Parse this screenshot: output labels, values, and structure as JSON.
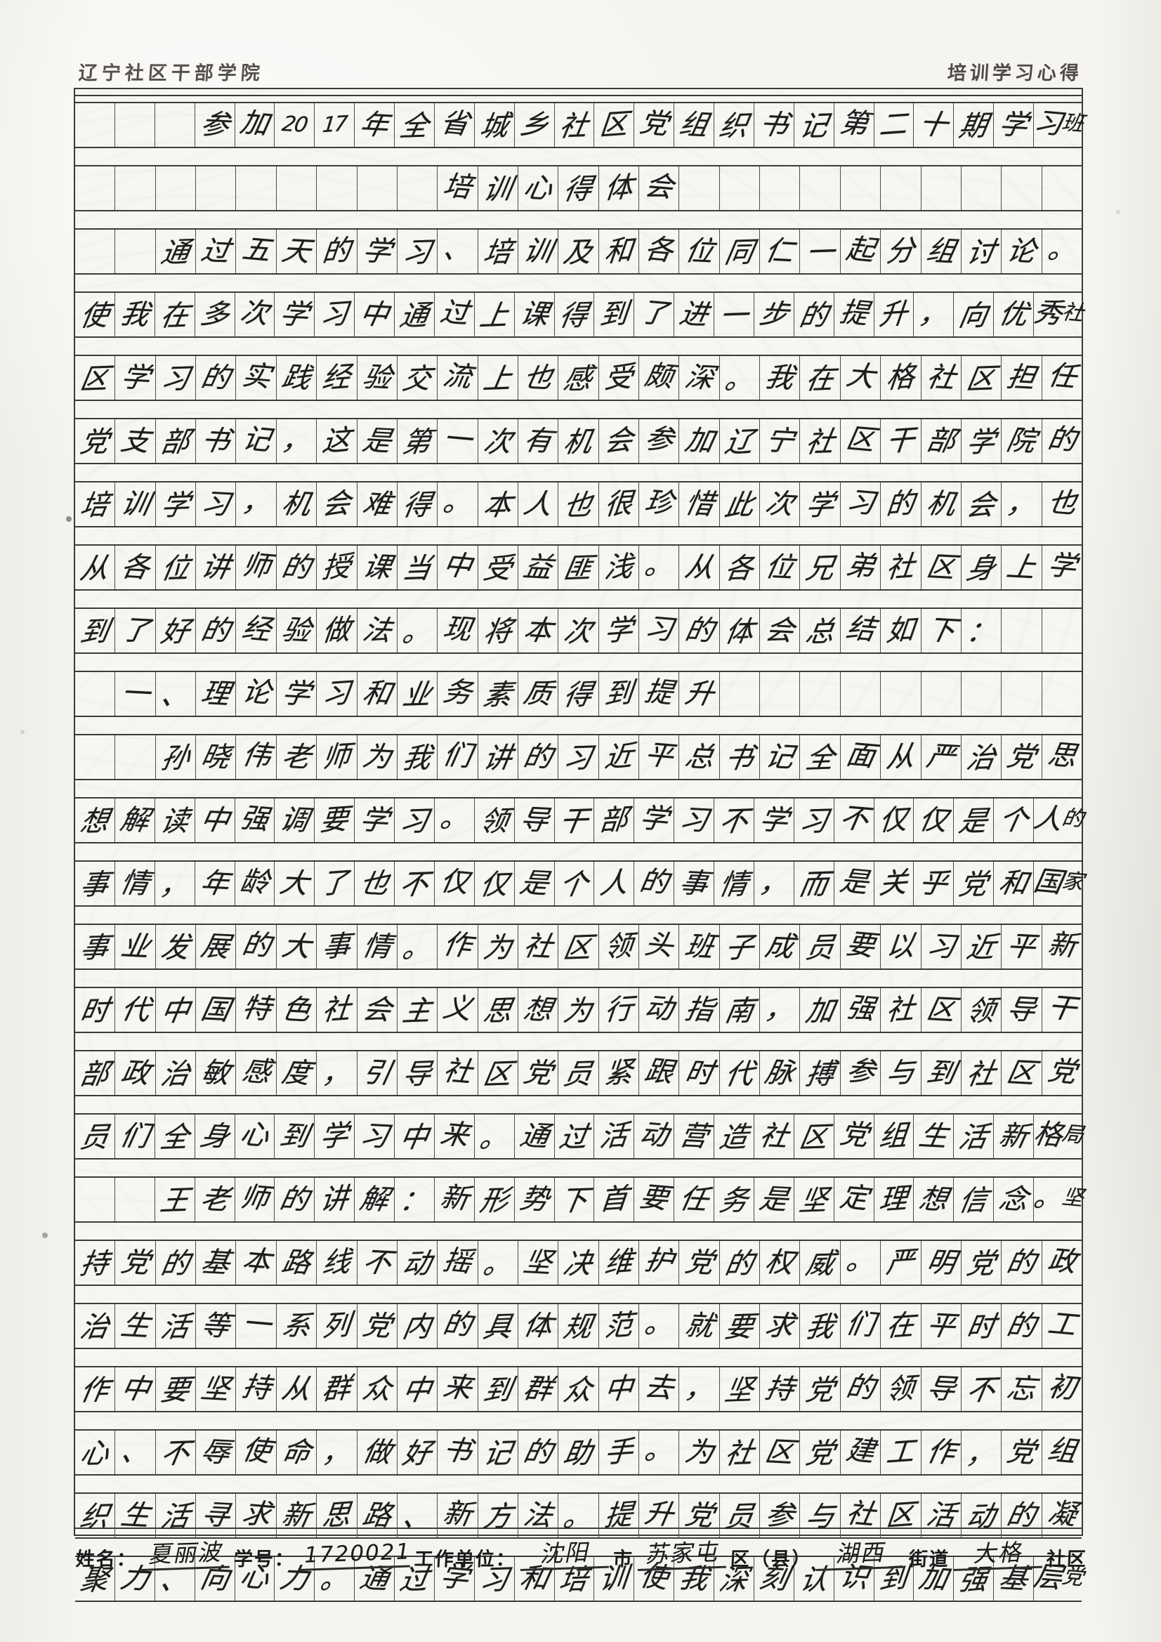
{
  "header": {
    "school": "辽宁社区干部学院",
    "doc_type": "培训学习心得"
  },
  "grid": {
    "cols": 25,
    "lines": [
      {
        "start": 3,
        "text": "参加2017年全省城乡社区党组织书记第二十期学习班"
      },
      {
        "start": 9,
        "text": "培训心得体会"
      },
      {
        "start": 2,
        "text": "通过五天的学习、培训及和各位同仁一起分组讨论。"
      },
      {
        "start": 0,
        "text": "使我在多次学习中通过上课得到了进一步的提升，向优秀社"
      },
      {
        "start": 0,
        "text": "区学习的实践经验交流上也感受颇深。我在大格社区担任"
      },
      {
        "start": 0,
        "text": "党支部书记，这是第一次有机会参加辽宁社区干部学院的"
      },
      {
        "start": 0,
        "text": "培训学习，机会难得。本人也很珍惜此次学习的机会，也"
      },
      {
        "start": 0,
        "text": "从各位讲师的授课当中受益匪浅。从各位兄弟社区身上学"
      },
      {
        "start": 0,
        "text": "到了好的经验做法。现将本次学习的体会总结如下："
      },
      {
        "start": 1,
        "text": "一、理论学习和业务素质得到提升"
      },
      {
        "start": 2,
        "text": "孙晓伟老师为我们讲的习近平总书记全面从严治党思"
      },
      {
        "start": 0,
        "text": "想解读中强调要学习。领导干部学习不学习不仅仅是个人的"
      },
      {
        "start": 0,
        "text": "事情，年龄大了也不仅仅是个人的事情，而是关乎党和国家"
      },
      {
        "start": 0,
        "text": "事业发展的大事情。作为社区领头班子成员要以习近平新"
      },
      {
        "start": 0,
        "text": "时代中国特色社会主义思想为行动指南，加强社区领导干"
      },
      {
        "start": 0,
        "text": "部政治敏感度，引导社区党员紧跟时代脉搏参与到社区党"
      },
      {
        "start": 0,
        "text": "员们全身心到学习中来。通过活动营造社区党组生活新格局"
      },
      {
        "start": 2,
        "text": "王老师的讲解：新形势下首要任务是坚定理想信念。坚"
      },
      {
        "start": 0,
        "text": "持党的基本路线不动摇。坚决维护党的权威。严明党的政"
      },
      {
        "start": 0,
        "text": "治生活等一系列党内的具体规范。就要求我们在平时的工"
      },
      {
        "start": 0,
        "text": "作中要坚持从群众中来到群众中去，坚持党的领导不忘初"
      },
      {
        "start": 0,
        "text": "心、不辱使命，做好书记的助手。为社区党建工作，党组"
      },
      {
        "start": 0,
        "text": "织生活寻求新思路、新方法。提升党员参与社区活动的凝"
      },
      {
        "start": 0,
        "text": "聚力、向心力。通过学习和培训使我深刻认识到加强基层党"
      }
    ]
  },
  "footer": {
    "name_label": "姓名：",
    "name_value": "夏丽波",
    "id_label": "学号：",
    "id_value": "1720021",
    "unit_label": "工作单位：",
    "city_value": "沈阳",
    "city_suffix": "市",
    "district_value": "苏家屯",
    "district_suffix": "区（县）",
    "street_value": "湖西",
    "street_suffix": "街道",
    "community_value": "大格",
    "community_suffix": "社区"
  },
  "colors": {
    "ink": "#1d1d1d",
    "grid_line": "#3a3a3a",
    "paper": "#f5f4f0"
  }
}
